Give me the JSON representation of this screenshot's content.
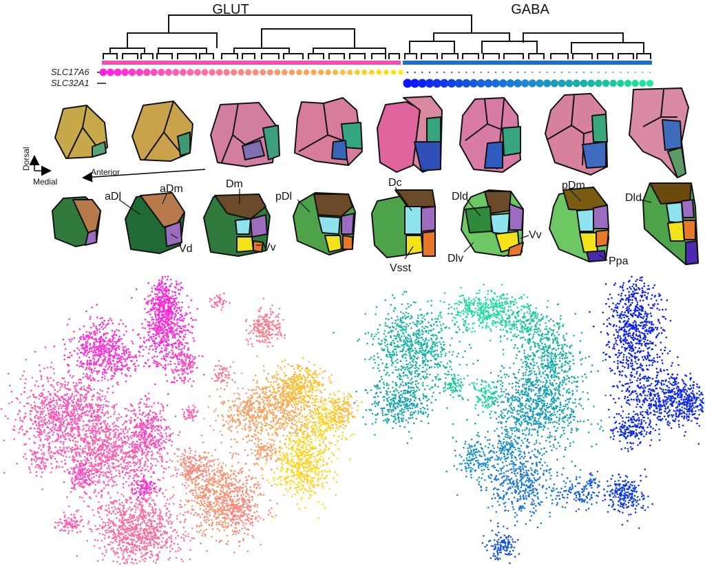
{
  "groups": {
    "glut": "GLUT",
    "gaba": "GABA"
  },
  "genes": {
    "slc17a6": "SLC17A6",
    "slc32a1": "SLC32A1"
  },
  "axes": {
    "dorsal": "Dorsal",
    "medial": "Medial",
    "anterior": "Anterior"
  },
  "regions": {
    "adl": "aDl",
    "adm": "aDm",
    "vd": "Vd",
    "dm": "Dm",
    "vv1": "Vv",
    "pdl": "pDl",
    "dc": "Dc",
    "vsst": "Vsst",
    "dld1": "Dld",
    "dlv": "Dlv",
    "vv2": "Vv",
    "pdm": "pDm",
    "ppa": "Ppa",
    "dld2": "Dld"
  },
  "colors": {
    "glut_bar": "#f24fb3",
    "gaba_bar": "#1f6fc8",
    "dl_green": "#2f7a3c",
    "dm_brown": "#6b4a2a",
    "dorsal_tan": "#b87a4a",
    "vd_purple": "#9b6cc0",
    "dc_cyan": "#8fe3ef",
    "v_yellow": "#f1e21a",
    "vv_orange": "#e7782a",
    "ppa_indigo": "#4b2ab0"
  }
}
